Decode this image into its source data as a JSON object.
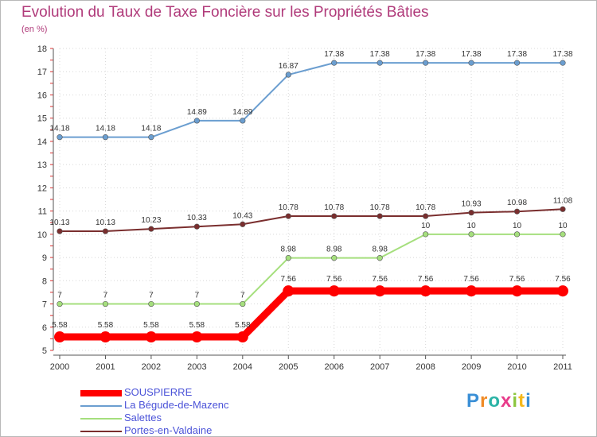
{
  "title": "Evolution du Taux de Taxe Foncière sur les Propriétés Bâties",
  "unit": "(en %)",
  "logo": "Proxiti",
  "chart_data": {
    "type": "line",
    "title": "Evolution du Taux de Taxe Foncière sur les Propriétés Bâties",
    "ylabel": "(en %)",
    "xlabel": "",
    "x": [
      2000,
      2001,
      2002,
      2003,
      2004,
      2005,
      2006,
      2007,
      2008,
      2009,
      2010,
      2011
    ],
    "ylim": [
      5,
      18
    ],
    "yticks": [
      5,
      6,
      7,
      8,
      9,
      10,
      11,
      12,
      13,
      14,
      15,
      16,
      17,
      18
    ],
    "legend_position": "bottom-left",
    "series": [
      {
        "name": "SOUSPIERRE",
        "color": "#ff0000",
        "emphasis": true,
        "values": [
          5.58,
          5.58,
          5.58,
          5.58,
          5.58,
          7.56,
          7.56,
          7.56,
          7.56,
          7.56,
          7.56,
          7.56
        ]
      },
      {
        "name": "La Bégude-de-Mazenc",
        "color": "#6b9ed0",
        "values": [
          14.18,
          14.18,
          14.18,
          14.89,
          14.89,
          16.87,
          17.38,
          17.38,
          17.38,
          17.38,
          17.38,
          17.38
        ]
      },
      {
        "name": "Salettes",
        "color": "#a5df7d",
        "values": [
          7,
          7,
          7,
          7,
          7,
          8.98,
          8.98,
          8.98,
          10,
          10,
          10,
          10
        ]
      },
      {
        "name": "Portes-en-Valdaine",
        "color": "#7a2e2e",
        "values": [
          10.13,
          10.13,
          10.23,
          10.33,
          10.43,
          10.78,
          10.78,
          10.78,
          10.78,
          10.93,
          10.98,
          11.08
        ]
      }
    ]
  }
}
